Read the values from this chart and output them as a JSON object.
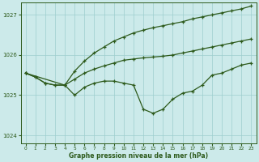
{
  "background_color": "#cceaea",
  "grid_color": "#9ecece",
  "line_color": "#2d5a1b",
  "xlabel": "Graphe pression niveau de la mer (hPa)",
  "ylim": [
    1023.8,
    1027.3
  ],
  "xlim": [
    -0.5,
    23.5
  ],
  "yticks": [
    1024,
    1025,
    1026,
    1027
  ],
  "xticks": [
    0,
    1,
    2,
    3,
    4,
    5,
    6,
    7,
    8,
    9,
    10,
    11,
    12,
    13,
    14,
    15,
    16,
    17,
    18,
    19,
    20,
    21,
    22,
    23
  ],
  "line1_x": [
    0,
    1,
    2,
    3,
    4,
    5,
    6,
    7,
    8,
    9,
    10,
    11,
    12,
    13,
    14,
    15,
    16,
    17,
    18,
    19,
    20,
    21,
    22,
    23
  ],
  "line1": [
    1025.55,
    1025.45,
    1025.3,
    1025.25,
    1025.25,
    1025.0,
    1025.2,
    1025.3,
    1025.35,
    1025.35,
    1025.3,
    1025.25,
    1024.65,
    1024.55,
    1024.65,
    1024.9,
    1025.05,
    1025.1,
    1025.25,
    1025.5,
    1025.55,
    1025.65,
    1025.75,
    1025.8
  ],
  "line2_x": [
    0,
    1,
    2,
    3,
    4,
    5,
    6,
    7,
    8,
    9,
    10,
    11,
    12,
    13,
    14,
    15,
    16,
    17,
    18,
    19,
    20,
    21,
    22,
    23
  ],
  "line2": [
    1025.55,
    1025.45,
    1025.3,
    1025.25,
    1025.25,
    1025.4,
    1025.55,
    1025.65,
    1025.73,
    1025.8,
    1025.87,
    1025.9,
    1025.93,
    1025.95,
    1025.97,
    1026.0,
    1026.05,
    1026.1,
    1026.15,
    1026.2,
    1026.25,
    1026.3,
    1026.35,
    1026.4
  ],
  "line3_x": [
    0,
    4,
    5,
    6,
    7,
    8,
    9,
    10,
    11,
    12,
    13,
    14,
    15,
    16,
    17,
    18,
    19,
    20,
    21,
    22,
    23
  ],
  "line3": [
    1025.55,
    1025.25,
    1025.6,
    1025.85,
    1026.05,
    1026.2,
    1026.35,
    1026.45,
    1026.55,
    1026.62,
    1026.68,
    1026.73,
    1026.78,
    1026.83,
    1026.9,
    1026.95,
    1027.0,
    1027.05,
    1027.1,
    1027.15,
    1027.22
  ]
}
